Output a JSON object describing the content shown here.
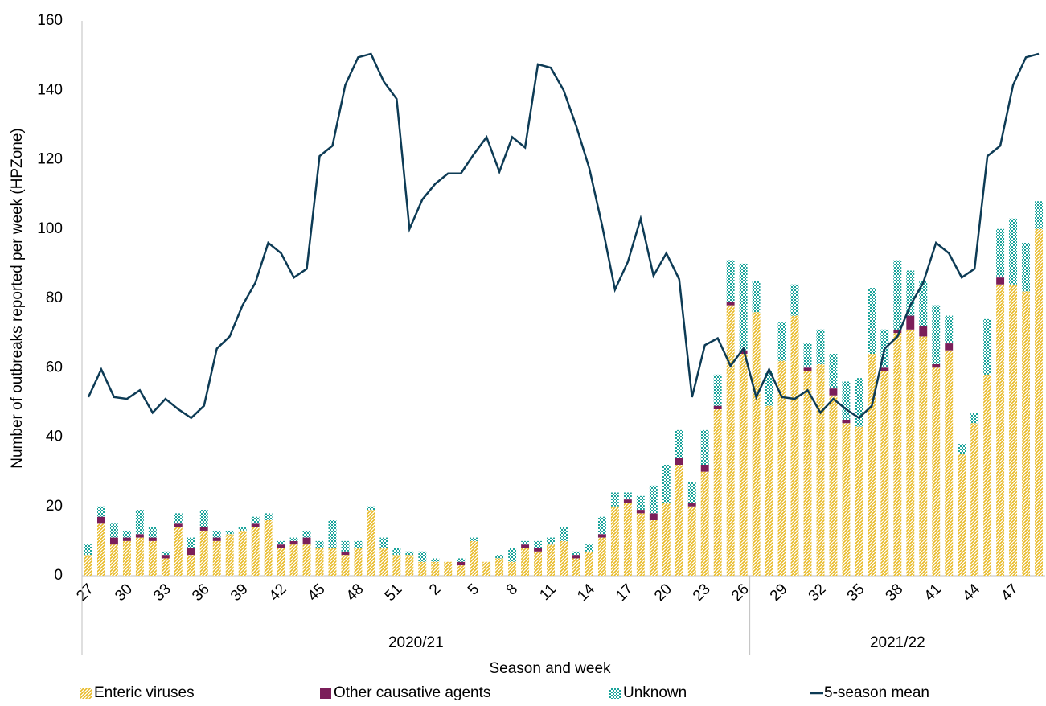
{
  "chart_data": {
    "type": "stacked-bar-line",
    "y_axis_label": "Number of outbreaks reported per week (HPZone)",
    "x_axis_label": "Season and week",
    "ylim": [
      0,
      160
    ],
    "yticks": [
      0,
      20,
      40,
      60,
      80,
      100,
      120,
      140,
      160
    ],
    "groups": [
      {
        "label": "2020/21",
        "count": 52
      },
      {
        "label": "2021/22",
        "count": 23
      }
    ],
    "categories": [
      "27",
      null,
      null,
      "30",
      null,
      null,
      "33",
      null,
      null,
      "36",
      null,
      null,
      "39",
      null,
      null,
      "42",
      null,
      null,
      "45",
      null,
      null,
      "48",
      null,
      null,
      "51",
      null,
      null,
      "2",
      null,
      null,
      "5",
      null,
      null,
      "8",
      null,
      null,
      "11",
      null,
      null,
      "14",
      null,
      null,
      "17",
      null,
      null,
      "20",
      null,
      null,
      "23",
      null,
      null,
      "26",
      null,
      null,
      "29",
      null,
      null,
      "32",
      null,
      null,
      "35",
      null,
      null,
      "38",
      null,
      null,
      "41",
      null,
      null,
      "44",
      null,
      null,
      "47",
      null,
      null
    ],
    "series": [
      {
        "name": "Enteric viruses",
        "kind": "bar",
        "pattern": "hatch",
        "color": "#e8b923",
        "values": [
          6,
          15,
          9,
          10,
          11,
          10,
          5,
          14,
          6,
          13,
          10,
          12,
          13,
          14,
          16,
          8,
          9,
          9,
          8,
          8,
          6,
          8,
          19,
          8,
          6,
          6,
          4,
          4,
          4,
          3,
          10,
          4,
          5,
          4,
          8,
          7,
          9,
          10,
          5,
          7,
          11,
          20,
          21,
          18,
          16,
          21,
          32,
          20,
          30,
          48,
          78,
          64,
          76,
          49,
          62,
          75,
          59,
          61,
          52,
          44,
          43,
          64,
          59,
          70,
          71,
          69,
          60,
          65,
          35,
          44,
          58,
          84,
          84,
          82,
          100
        ]
      },
      {
        "name": "Other causative agents",
        "kind": "bar",
        "pattern": "solid",
        "color": "#7b1e5a",
        "values": [
          0,
          2,
          2,
          1,
          1,
          1,
          1,
          1,
          2,
          1,
          1,
          0,
          0,
          1,
          0,
          1,
          1,
          2,
          0,
          0,
          1,
          0,
          0,
          0,
          0,
          0,
          0,
          0,
          0,
          1,
          0,
          0,
          0,
          0,
          1,
          1,
          0,
          0,
          1,
          0,
          1,
          0,
          1,
          1,
          2,
          0,
          2,
          1,
          2,
          1,
          1,
          1,
          0,
          0,
          0,
          0,
          1,
          0,
          2,
          1,
          0,
          0,
          1,
          1,
          4,
          3,
          1,
          2,
          0,
          0,
          0,
          2,
          0,
          0,
          0
        ]
      },
      {
        "name": "Unknown",
        "kind": "bar",
        "pattern": "check",
        "color": "#1aa39a",
        "values": [
          3,
          3,
          4,
          2,
          7,
          3,
          1,
          3,
          3,
          5,
          2,
          1,
          1,
          2,
          2,
          1,
          1,
          2,
          2,
          8,
          3,
          2,
          1,
          3,
          2,
          1,
          3,
          1,
          0,
          1,
          1,
          0,
          1,
          4,
          1,
          2,
          2,
          4,
          1,
          2,
          5,
          4,
          2,
          4,
          8,
          11,
          8,
          6,
          10,
          9,
          12,
          25,
          9,
          10,
          11,
          9,
          7,
          10,
          10,
          11,
          14,
          19,
          11,
          20,
          13,
          13,
          17,
          8,
          3,
          3,
          16,
          14,
          19,
          14,
          8
        ]
      },
      {
        "name": "5-season mean",
        "kind": "line",
        "color": "#0d3b55",
        "values": [
          51.5,
          59.5,
          51.5,
          51,
          53.5,
          47,
          51,
          48,
          45.5,
          49,
          65.5,
          69,
          78,
          84.5,
          96,
          93,
          86,
          88.5,
          121,
          124,
          141.5,
          149.5,
          150.5,
          142.5,
          137.5,
          100,
          108.5,
          113,
          116,
          116,
          121.5,
          126.5,
          116.5,
          126.5,
          123.5,
          147.5,
          146.5,
          140,
          129.5,
          117.5,
          101,
          82.5,
          90.5,
          103,
          86.5,
          93,
          85.5,
          51.5,
          66.5,
          68.5,
          60.5,
          65.5,
          51.5,
          59.5,
          51.5,
          51,
          53.5,
          47,
          51,
          48,
          45.5,
          49,
          65.5,
          69,
          78,
          84.5,
          96,
          93,
          86,
          88.5,
          121,
          124,
          141.5,
          149.5,
          150.5
        ]
      }
    ]
  }
}
